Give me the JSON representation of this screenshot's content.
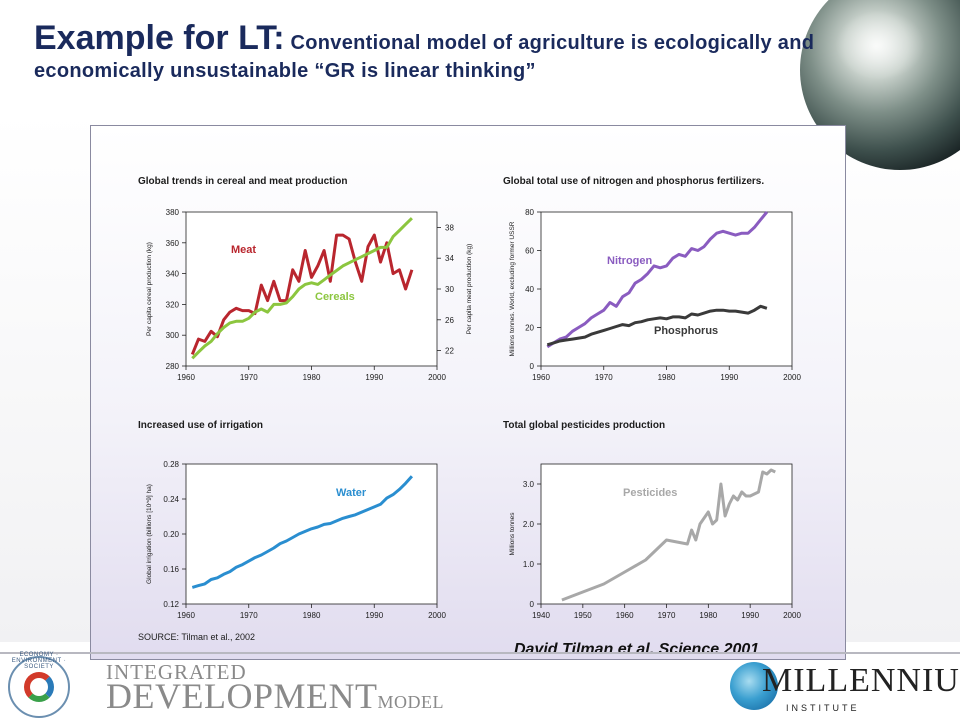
{
  "slide": {
    "title_big": "Example for LT:",
    "title_rest": " Conventional model of agriculture is ecologically and economically  unsustainable “GR is linear thinking”",
    "caption": "David Tilman et al. Science 2001",
    "source": "SOURCE: Tilman et al., 2002"
  },
  "logos": {
    "left_line1": "INTEGRATED",
    "left_line2": "DEVELOPMENT",
    "left_line3": "MODEL",
    "left_seal_text": "ECONOMY · ENVIRONMENT · SOCIETY",
    "right_line1": "MILLENNIUM",
    "right_line2": "INSTITUTE"
  },
  "colors": {
    "meat": "#b9262e",
    "cereals": "#8cc63f",
    "nitrogen": "#8a5cc0",
    "phosphorus": "#3a3a3a",
    "water": "#2a8ed0",
    "pesticides": "#a8a8a8",
    "title": "#1a2a5c"
  },
  "chart_data": [
    {
      "type": "line",
      "title": "Global trends in cereal and meat production",
      "xlabel": "",
      "ylabel": "Per capita cereal production (kg)",
      "y2label": "Per capita meat production (kg)",
      "xlim": [
        1960,
        2000
      ],
      "ylim": [
        280,
        380
      ],
      "y2lim": [
        20,
        40
      ],
      "xticks": [
        1960,
        1970,
        1980,
        1990,
        2000
      ],
      "yticks": [
        280,
        300,
        320,
        340,
        360,
        380
      ],
      "y2ticks": [
        22,
        26,
        30,
        34,
        38
      ],
      "series": [
        {
          "name": "Meat",
          "axis": "y2",
          "x": [
            1961,
            1962,
            1963,
            1964,
            1965,
            1966,
            1967,
            1968,
            1969,
            1970,
            1971,
            1972,
            1973,
            1974,
            1975,
            1976,
            1977,
            1978,
            1979,
            1980,
            1981,
            1982,
            1983,
            1984,
            1985,
            1986,
            1987,
            1988,
            1989,
            1990,
            1991,
            1992,
            1993,
            1994,
            1995,
            1996
          ],
          "values": [
            21.5,
            23.5,
            23.2,
            24.5,
            23.8,
            26.0,
            27.0,
            27.5,
            27.2,
            27.2,
            26.8,
            30.5,
            28.5,
            31.0,
            28.5,
            28.5,
            32.5,
            31.0,
            35.0,
            31.5,
            33.0,
            35.0,
            31.0,
            37.0,
            37.0,
            36.5,
            33.5,
            31.0,
            35.5,
            37.0,
            33.5,
            36.0,
            32.0,
            32.5,
            30.0,
            32.5
          ]
        },
        {
          "name": "Cereals",
          "axis": "y",
          "x": [
            1961,
            1962,
            1963,
            1964,
            1965,
            1966,
            1967,
            1968,
            1969,
            1970,
            1971,
            1972,
            1973,
            1974,
            1975,
            1976,
            1977,
            1978,
            1979,
            1980,
            1981,
            1982,
            1983,
            1984,
            1985,
            1986,
            1987,
            1988,
            1989,
            1990,
            1991,
            1992,
            1993,
            1994,
            1995,
            1996
          ],
          "values": [
            285,
            289,
            293,
            296,
            301,
            305,
            308,
            309,
            309,
            311,
            315,
            317,
            315,
            320,
            320,
            321,
            325,
            330,
            333,
            334,
            333,
            336,
            339,
            342,
            345,
            347,
            349,
            351,
            353,
            355,
            357,
            357,
            364,
            368,
            372,
            376
          ]
        }
      ]
    },
    {
      "type": "line",
      "title": "Global total use of nitrogen and phosphorus fertilizers.",
      "ylabel": "Millions tonnes. World, excluding former USSR",
      "xlim": [
        1960,
        2000
      ],
      "ylim": [
        0,
        80
      ],
      "xticks": [
        1960,
        1970,
        1980,
        1990,
        2000
      ],
      "yticks": [
        0,
        20,
        40,
        60,
        80
      ],
      "series": [
        {
          "name": "Nitrogen",
          "x": [
            1961,
            1962,
            1963,
            1964,
            1965,
            1966,
            1967,
            1968,
            1969,
            1970,
            1971,
            1972,
            1973,
            1974,
            1975,
            1976,
            1977,
            1978,
            1979,
            1980,
            1981,
            1982,
            1983,
            1984,
            1985,
            1986,
            1987,
            1988,
            1989,
            1990,
            1991,
            1992,
            1993,
            1994,
            1995,
            1996
          ],
          "values": [
            10,
            12,
            14,
            15,
            18,
            20,
            22,
            25,
            27,
            29,
            33,
            31,
            36,
            38,
            43,
            45,
            48,
            52,
            51,
            52,
            56,
            58,
            57,
            61,
            60,
            62,
            66,
            69,
            70,
            69,
            68,
            69,
            69,
            72,
            76,
            80
          ]
        },
        {
          "name": "Phosphorus",
          "x": [
            1961,
            1962,
            1963,
            1964,
            1965,
            1966,
            1967,
            1968,
            1969,
            1970,
            1971,
            1972,
            1973,
            1974,
            1975,
            1976,
            1977,
            1978,
            1979,
            1980,
            1981,
            1982,
            1983,
            1984,
            1985,
            1986,
            1987,
            1988,
            1989,
            1990,
            1991,
            1992,
            1993,
            1994,
            1995,
            1996
          ],
          "values": [
            11,
            12,
            13,
            13.5,
            14,
            14.5,
            15,
            16.5,
            17.5,
            18.5,
            19.5,
            20.5,
            21.5,
            21,
            22.5,
            23,
            24,
            24.5,
            25,
            24.5,
            25.5,
            25.5,
            25,
            27,
            26.5,
            27.5,
            28.5,
            29,
            29,
            28.5,
            28.5,
            28,
            27.5,
            29,
            31,
            30
          ]
        }
      ]
    },
    {
      "type": "line",
      "title": "Increased use of irrigation",
      "ylabel": "Global irrigation (billions [10^9] ha)",
      "xlim": [
        1960,
        2000
      ],
      "ylim": [
        0.12,
        0.28
      ],
      "xticks": [
        1960,
        1970,
        1980,
        1990,
        2000
      ],
      "yticks": [
        0.12,
        0.16,
        0.2,
        0.24,
        0.28
      ],
      "series": [
        {
          "name": "Water",
          "x": [
            1961,
            1962,
            1963,
            1964,
            1965,
            1966,
            1967,
            1968,
            1969,
            1970,
            1971,
            1972,
            1973,
            1974,
            1975,
            1976,
            1977,
            1978,
            1979,
            1980,
            1981,
            1982,
            1983,
            1984,
            1985,
            1986,
            1987,
            1988,
            1989,
            1990,
            1991,
            1992,
            1993,
            1994,
            1995,
            1996
          ],
          "values": [
            0.139,
            0.141,
            0.143,
            0.148,
            0.15,
            0.154,
            0.157,
            0.162,
            0.165,
            0.169,
            0.173,
            0.176,
            0.18,
            0.184,
            0.189,
            0.192,
            0.196,
            0.2,
            0.203,
            0.206,
            0.208,
            0.211,
            0.212,
            0.215,
            0.218,
            0.22,
            0.222,
            0.225,
            0.228,
            0.231,
            0.234,
            0.241,
            0.245,
            0.251,
            0.258,
            0.266
          ]
        }
      ]
    },
    {
      "type": "line",
      "title": "Total global pesticides production",
      "ylabel": "Millions tonnes",
      "xlim": [
        1940,
        2000
      ],
      "ylim": [
        0,
        3.5
      ],
      "xticks": [
        1940,
        1950,
        1960,
        1970,
        1980,
        1990,
        2000
      ],
      "yticks": [
        0,
        1.0,
        2.0,
        3.0
      ],
      "series": [
        {
          "name": "Pesticides",
          "x": [
            1945,
            1950,
            1955,
            1960,
            1965,
            1970,
            1975,
            1976,
            1977,
            1978,
            1980,
            1981,
            1982,
            1983,
            1984,
            1985,
            1986,
            1987,
            1988,
            1989,
            1990,
            1992,
            1993,
            1994,
            1995,
            1996
          ],
          "values": [
            0.1,
            0.3,
            0.5,
            0.8,
            1.1,
            1.6,
            1.5,
            1.85,
            1.6,
            2.0,
            2.3,
            2.0,
            2.1,
            3.0,
            2.2,
            2.5,
            2.7,
            2.6,
            2.8,
            2.7,
            2.7,
            2.8,
            3.3,
            3.25,
            3.35,
            3.3
          ]
        }
      ]
    }
  ]
}
